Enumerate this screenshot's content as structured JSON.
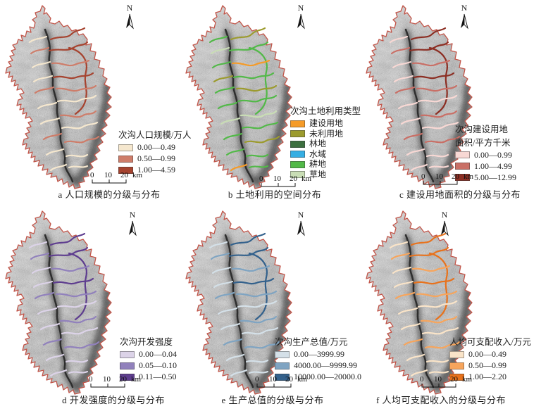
{
  "figure": {
    "background": "#ffffff",
    "boundary_color": "#c25549",
    "river_color": "#2e2e2e",
    "terrain_base": "#b8b8b8",
    "north_label": "N",
    "scale_bar": {
      "tick_labels": [
        "0",
        "10",
        "20"
      ],
      "unit": "km"
    },
    "panels": [
      {
        "id": "a",
        "caption": "a  人口规模的分级与分布",
        "legend_title": "次沟人口规模/万人",
        "legend_title2": "",
        "items": [
          {
            "label": "0.00—0.49",
            "color": "#f5e7ce"
          },
          {
            "label": "0.50—0.99",
            "color": "#ce7d6a"
          },
          {
            "label": "1.00—4.59",
            "color": "#a6432f"
          }
        ]
      },
      {
        "id": "b",
        "caption": "b  土地利用的空间分布",
        "legend_title": "次沟土地利用类型",
        "legend_title2": "",
        "items": [
          {
            "label": "建设用地",
            "color": "#f59b28"
          },
          {
            "label": "未利用地",
            "color": "#9c9b2e"
          },
          {
            "label": "林地",
            "color": "#3d7040"
          },
          {
            "label": "水域",
            "color": "#35aee3"
          },
          {
            "label": "耕地",
            "color": "#52b948"
          },
          {
            "label": "草地",
            "color": "#c9ddb5"
          }
        ]
      },
      {
        "id": "c",
        "caption": "c  建设用地面积的分级与分布",
        "legend_title": "次沟建设用地",
        "legend_title2": "面积/平方千米",
        "items": [
          {
            "label": "0.00—0.99",
            "color": "#f8d8d4"
          },
          {
            "label": "1.00—4.99",
            "color": "#c96f66"
          },
          {
            "label": "5.00—12.99",
            "color": "#8c2e23"
          }
        ]
      },
      {
        "id": "d",
        "caption": "d  开发强度的分级与分布",
        "legend_title": "次沟开发强度",
        "legend_title2": "",
        "items": [
          {
            "label": "0.00—0.04",
            "color": "#dcd3e8"
          },
          {
            "label": "0.05—0.10",
            "color": "#9181bc"
          },
          {
            "label": "0.11—0.50",
            "color": "#5e3d8f"
          }
        ]
      },
      {
        "id": "e",
        "caption": "e  生产总值的分级与分布",
        "legend_title": "次沟生产总值/万元",
        "legend_title2": "",
        "items": [
          {
            "label": "0.00—3999.99",
            "color": "#d4e0e8"
          },
          {
            "label": "4000.00—9999.99",
            "color": "#7fa4c2"
          },
          {
            "label": "10000.00—20000.0",
            "color": "#33618c"
          }
        ]
      },
      {
        "id": "f",
        "caption": "f  人均可支配收入的分级与分布",
        "legend_title": "人均可支配收入/万元",
        "legend_title2": "",
        "items": [
          {
            "label": "0.00—0.49",
            "color": "#fae4c8"
          },
          {
            "label": "0.50—0.99",
            "color": "#f7a55c"
          },
          {
            "label": "1.00—2.20",
            "color": "#e8721c"
          }
        ]
      }
    ]
  }
}
